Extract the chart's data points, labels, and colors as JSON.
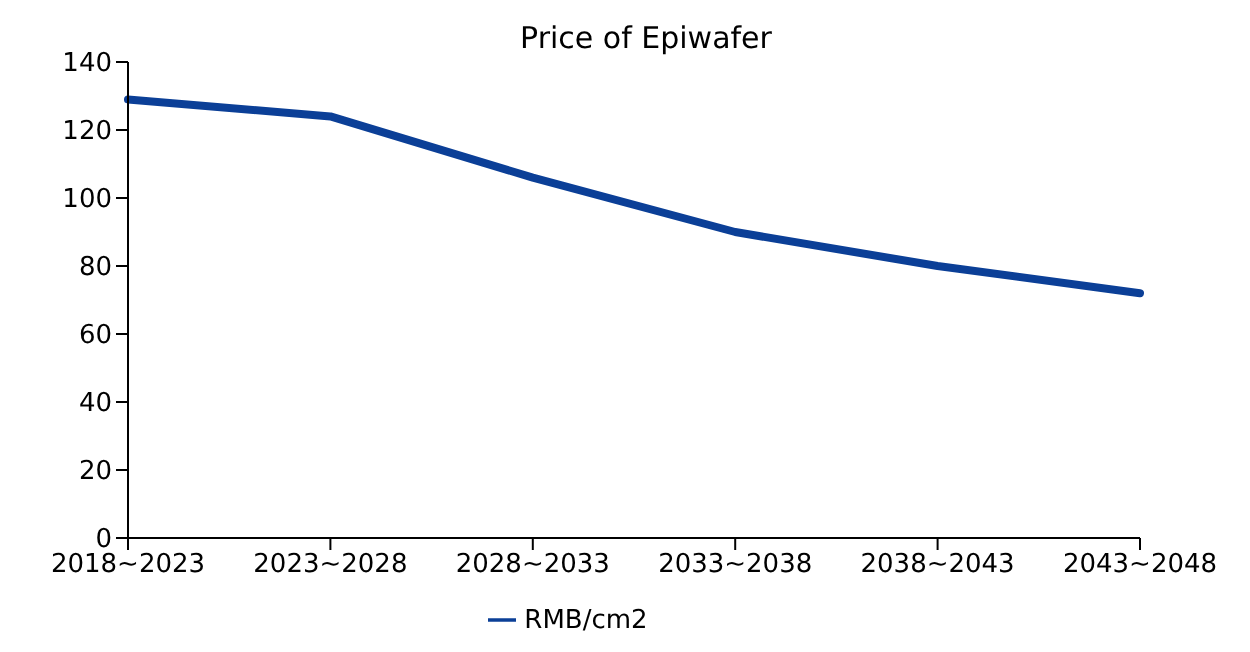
{
  "chart_data": {
    "type": "line",
    "title": "Price of Epiwafer",
    "categories": [
      "2018~2023",
      "2023~2028",
      "2028~2033",
      "2033~2038",
      "2038~2043",
      "2043~2048"
    ],
    "series": [
      {
        "name": "RMB/cm2",
        "color": "#0b3f97",
        "values": [
          129,
          124,
          106,
          90,
          80,
          72
        ]
      }
    ],
    "ylim": [
      0,
      140
    ],
    "yticks": [
      0,
      20,
      40,
      60,
      80,
      100,
      120,
      140
    ],
    "grid": false,
    "legend": "bottom",
    "marker": "none",
    "line_style": "solid"
  }
}
